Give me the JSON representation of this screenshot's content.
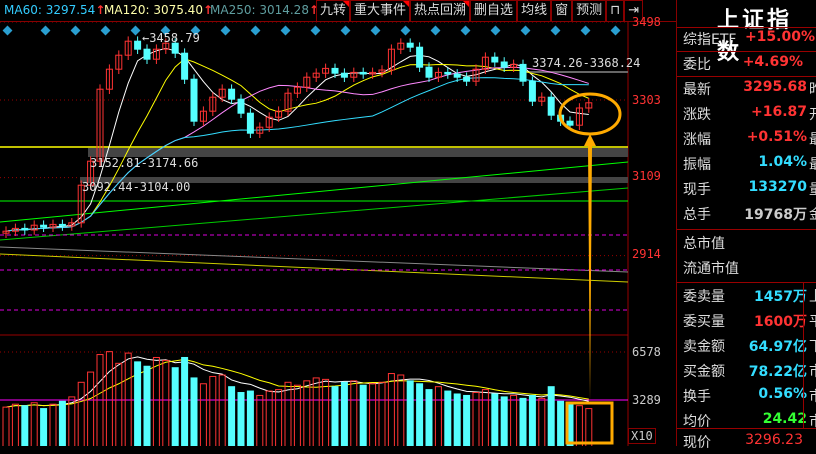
{
  "header": {
    "ma60": "MA60: 3297.54",
    "ma120": "MA120: 3075.40",
    "ma250": "MA250: 3014.28",
    "ma_arrow": "↑",
    "buttons": [
      "九转",
      "重大事件",
      "热点回溯",
      "删自选",
      "均线",
      "窗",
      "预测"
    ],
    "lock_icon": "lock-icon",
    "expand_icon": "expand-right-icon"
  },
  "colors": {
    "ma60": "#33ccff",
    "ma120": "#ffffaa",
    "ma250": "#5f9ea0",
    "up": "#ff3333",
    "down": "#55ffff",
    "annotation": "#ffaa00"
  },
  "chart_data": {
    "type": "candlestick",
    "y_ticks": [
      "3498",
      "3303",
      "3109",
      "2914"
    ],
    "ylim": [
      2850,
      3500
    ],
    "vol_ticks": [
      "6578",
      "3289"
    ],
    "vol_unit": "X10",
    "annotations": [
      "3458.79",
      "3374.26-3368.24",
      "3152.81-3174.66",
      "3092.44-3104.00"
    ],
    "closes": [
      2975,
      2982,
      2978,
      2990,
      2985,
      2992,
      2988,
      2996,
      3090,
      3150,
      3330,
      3380,
      3415,
      3450,
      3430,
      3405,
      3430,
      3445,
      3420,
      3355,
      3250,
      3275,
      3310,
      3330,
      3305,
      3270,
      3220,
      3235,
      3260,
      3275,
      3320,
      3335,
      3360,
      3370,
      3382,
      3370,
      3360,
      3372,
      3368,
      3372,
      3378,
      3430,
      3445,
      3435,
      3385,
      3360,
      3372,
      3368,
      3360,
      3350,
      3380,
      3410,
      3398,
      3385,
      3392,
      3350,
      3300,
      3310,
      3265,
      3250,
      3240,
      3283,
      3296
    ],
    "volumes": [
      2800,
      3000,
      2900,
      3100,
      2700,
      3000,
      3200,
      3500,
      4500,
      5200,
      6400,
      6600,
      5800,
      6500,
      5900,
      5600,
      6200,
      6000,
      5500,
      6200,
      4800,
      4400,
      4900,
      5000,
      4200,
      3800,
      3900,
      3600,
      3900,
      4000,
      4500,
      4300,
      4600,
      4800,
      4700,
      4200,
      4500,
      4600,
      4300,
      4400,
      4500,
      5100,
      5000,
      4600,
      4400,
      4000,
      4200,
      3900,
      3700,
      3600,
      3800,
      4000,
      3700,
      3500,
      3600,
      3400,
      3600,
      3400,
      4200,
      3200,
      3000,
      2900,
      2700
    ]
  },
  "panel": {
    "title": "上证指数",
    "rows1": [
      {
        "k": "综指ETF",
        "v": "+15.00%",
        "c": ""
      },
      {
        "k": "委比",
        "v": "+4.69%",
        "c": ""
      }
    ],
    "rows2": [
      {
        "k": "最新",
        "v": "3295.68",
        "c": "昨"
      },
      {
        "k": "涨跌",
        "v": "+16.87",
        "c": "开"
      },
      {
        "k": "涨幅",
        "v": "+0.51%",
        "c": "最"
      },
      {
        "k": "振幅",
        "v": "1.04%",
        "c": "最"
      },
      {
        "k": "现手",
        "v": "133270",
        "c": "量"
      },
      {
        "k": "总手",
        "v": "19768万",
        "c": "金"
      }
    ],
    "rows3": [
      {
        "k": "总市值",
        "v": "",
        "c": ""
      },
      {
        "k": "流通市值",
        "v": "",
        "c": ""
      }
    ],
    "rows4": [
      {
        "k": "委卖量",
        "v": "1457万",
        "c": "上"
      },
      {
        "k": "委买量",
        "v": "1600万",
        "c": "平"
      },
      {
        "k": "卖金额",
        "v": "64.97亿",
        "c": "下"
      },
      {
        "k": "买金额",
        "v": "78.22亿",
        "c": "市"
      },
      {
        "k": "换手",
        "v": "0.56%",
        "c": "市"
      },
      {
        "k": "均价",
        "v": "24.42",
        "c": "市"
      }
    ],
    "last": {
      "k": "现价",
      "v": "3296.23"
    }
  }
}
